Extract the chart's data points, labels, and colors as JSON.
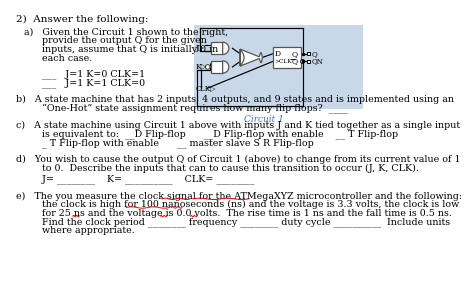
{
  "bg_color": "#ffffff",
  "circuit_bg": "#c8d8e8",
  "italic_color": "#4472c4",
  "fs": 6.8,
  "fs_title": 7.5,
  "title": "2)  Answer the following:",
  "a_line1": "a)   Given the Circuit 1 shown to the right,",
  "a_line2": "      provide the output Q for the given",
  "a_line3": "      inputs, assume that Q is initially 0 in",
  "a_line4": "      each case.",
  "a_q1": "         ___   J=1 K=0 CLK=1",
  "a_q2": "         ___   J=1 K=1 CLK=0",
  "circuit_caption": "Circuit 1",
  "b_line1": "b)   A state machine that has 2 inputs, 4 outputs, and 9 states and is implemented using an",
  "b_line2": "      “One-Hot” state assignment requires how many flip flops?  ____",
  "c_line1": "c)   A state machine using Circuit 1 above with inputs J and K tied together as a single input",
  "c_line2": "      is equivalent to:  __D Flip-flop      __D Flip-flop with enable    __ T Flip-flop",
  "c_line3": "      _ T Flip-flop with enable      __ master slave S R Flip-flop",
  "d_line1": "d)   You wish to cause the output Q of Circuit 1 (above) to change from its current value of 1",
  "d_line2": "      to 0.  Describe the inputs that can to cause this transition to occur (J, K, CLK).",
  "d_line3": "      J= ________    K= __________    CLK= ________",
  "e_line1": "e)   The you measure the clock signal for the ATMegaXYZ microcontroller and the following:",
  "e_line2": "      the clock is high for 100 nanoseconds (ns) and the voltage is 3.3 volts, the clock is low",
  "e_line3": "      for 25 ns and the voltage is 0.0 volts.  The rise time is 1 ns and the fall time is 0.5 ns.",
  "e_line4": "      Find the clock period ________ frequency ________ duty cycle __________  Include units",
  "e_line5": "      where appropriate."
}
